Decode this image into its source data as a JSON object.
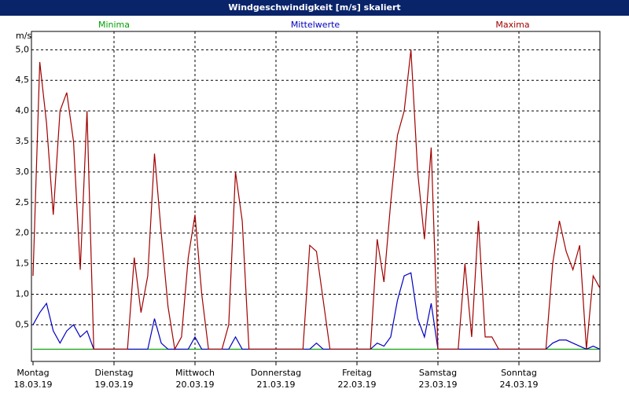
{
  "chart_data": {
    "type": "line",
    "title": "Windgeschwindigkeit [m/s] skaliert",
    "y_label": "m/s",
    "x": [
      0,
      2,
      4,
      6,
      8,
      10,
      12,
      14,
      16,
      18,
      20,
      22,
      24,
      26,
      28,
      30,
      32,
      34,
      36,
      38,
      40,
      42,
      44,
      46,
      48,
      50,
      52,
      54,
      56,
      58,
      60,
      62,
      64,
      66,
      68,
      70,
      72,
      74,
      76,
      78,
      80,
      82,
      84,
      86,
      88,
      90,
      92,
      94,
      96,
      98,
      100,
      102,
      104,
      106,
      108,
      110,
      112,
      114,
      116,
      118,
      120,
      122,
      124,
      126,
      128,
      130,
      132,
      134,
      136,
      138,
      140,
      142,
      144,
      146,
      148,
      150,
      152,
      154,
      156,
      158,
      160,
      162,
      164,
      166,
      168
    ],
    "xlim": [
      0,
      168
    ],
    "xticks": [
      {
        "value": 0,
        "label": "Montag"
      },
      {
        "value": 24,
        "label": "Dienstag"
      },
      {
        "value": 48,
        "label": "Mittwoch"
      },
      {
        "value": 72,
        "label": "Donnerstag"
      },
      {
        "value": 96,
        "label": "Freitag"
      },
      {
        "value": 120,
        "label": "Samstag"
      },
      {
        "value": 144,
        "label": "Sonntag"
      }
    ],
    "xtick_dates": [
      "18.03.19",
      "19.03.19",
      "20.03.19",
      "21.03.19",
      "22.03.19",
      "23.03.19",
      "24.03.19"
    ],
    "ylim": [
      -0.1,
      5.3
    ],
    "yticks": [
      {
        "value": 0.5,
        "label": "0,5"
      },
      {
        "value": 1,
        "label": "1,0"
      },
      {
        "value": 1.5,
        "label": "1,5"
      },
      {
        "value": 2,
        "label": "2,0"
      },
      {
        "value": 2.5,
        "label": "2,5"
      },
      {
        "value": 3,
        "label": "3,0"
      },
      {
        "value": 3.5,
        "label": "3,5"
      },
      {
        "value": 4,
        "label": "4,0"
      },
      {
        "value": 4.5,
        "label": "4,5"
      },
      {
        "value": 5,
        "label": "5,0"
      }
    ],
    "grid": true,
    "series": [
      {
        "name": "Minima",
        "color": "#00a000",
        "values": [
          0.1,
          0.1,
          0.1,
          0.1,
          0.1,
          0.1,
          0.1,
          0.1,
          0.1,
          0.1,
          0.1,
          0.1,
          0.1,
          0.1,
          0.1,
          0.1,
          0.1,
          0.1,
          0.1,
          0.1,
          0.1,
          0.1,
          0.1,
          0.1,
          0.1,
          0.1,
          0.1,
          0.1,
          0.1,
          0.1,
          0.1,
          0.1,
          0.1,
          0.1,
          0.1,
          0.1,
          0.1,
          0.1,
          0.1,
          0.1,
          0.1,
          0.1,
          0.1,
          0.1,
          0.1,
          0.1,
          0.1,
          0.1,
          0.1,
          0.1,
          0.1,
          0.1,
          0.1,
          0.1,
          0.1,
          0.1,
          0.1,
          0.1,
          0.1,
          0.1,
          0.1,
          0.1,
          0.1,
          0.1,
          0.1,
          0.1,
          0.1,
          0.1,
          0.1,
          0.1,
          0.1,
          0.1,
          0.1,
          0.1,
          0.1,
          0.1,
          0.1,
          0.1,
          0.1,
          0.1,
          0.1,
          0.1,
          0.1,
          0.1,
          0.1
        ]
      },
      {
        "name": "Mittelwerte",
        "color": "#0000c0",
        "values": [
          0.5,
          0.7,
          0.85,
          0.4,
          0.2,
          0.4,
          0.5,
          0.3,
          0.4,
          0.1,
          0.1,
          0.1,
          0.1,
          0.1,
          0.1,
          0.1,
          0.1,
          0.1,
          0.6,
          0.2,
          0.1,
          0.1,
          0.1,
          0.1,
          0.3,
          0.1,
          0.1,
          0.1,
          0.1,
          0.1,
          0.3,
          0.1,
          0.1,
          0.1,
          0.1,
          0.1,
          0.1,
          0.1,
          0.1,
          0.1,
          0.1,
          0.1,
          0.2,
          0.1,
          0.1,
          0.1,
          0.1,
          0.1,
          0.1,
          0.1,
          0.1,
          0.2,
          0.15,
          0.3,
          0.9,
          1.3,
          1.35,
          0.6,
          0.3,
          0.85,
          0.1,
          0.1,
          0.1,
          0.1,
          0.1,
          0.1,
          0.1,
          0.1,
          0.1,
          0.1,
          0.1,
          0.1,
          0.1,
          0.1,
          0.1,
          0.1,
          0.1,
          0.2,
          0.25,
          0.25,
          0.2,
          0.15,
          0.1,
          0.15,
          0.1
        ]
      },
      {
        "name": "Maxima",
        "color": "#a00000",
        "values": [
          1.3,
          4.8,
          3.8,
          2.3,
          4.0,
          4.3,
          3.5,
          1.4,
          4.0,
          0.1,
          0.1,
          0.1,
          0.1,
          0.1,
          0.1,
          1.6,
          0.7,
          1.3,
          3.3,
          2.0,
          0.8,
          0.1,
          0.3,
          1.6,
          2.3,
          1.0,
          0.1,
          0.1,
          0.1,
          0.5,
          3.0,
          2.2,
          0.1,
          0.1,
          0.1,
          0.1,
          0.1,
          0.1,
          0.1,
          0.1,
          0.1,
          1.8,
          1.7,
          0.9,
          0.1,
          0.1,
          0.1,
          0.1,
          0.1,
          0.1,
          0.1,
          1.9,
          1.2,
          2.5,
          3.6,
          4.0,
          5.0,
          3.0,
          1.9,
          3.4,
          0.1,
          0.1,
          0.1,
          0.1,
          1.5,
          0.3,
          2.2,
          0.3,
          0.3,
          0.1,
          0.1,
          0.1,
          0.1,
          0.1,
          0.1,
          0.1,
          0.1,
          1.5,
          2.2,
          1.7,
          1.4,
          1.8,
          0.1,
          1.3,
          1.1
        ]
      }
    ]
  }
}
